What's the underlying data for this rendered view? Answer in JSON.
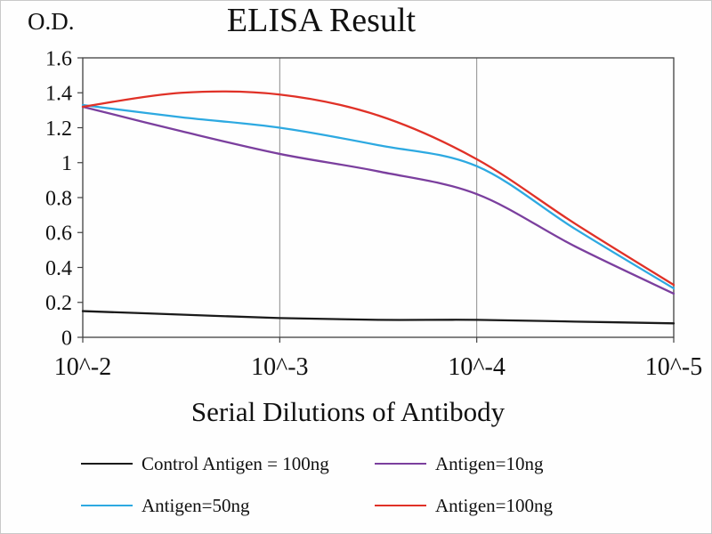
{
  "figure": {
    "title": "ELISA Result",
    "ylabel": "O.D.",
    "xlabel": "Serial Dilutions of Antibody"
  },
  "chart_data": {
    "type": "line",
    "title": "ELISA Result",
    "xlabel": "Serial Dilutions of Antibody",
    "ylabel": "O.D.",
    "x_log10": [
      -2,
      -2.5,
      -3,
      -3.5,
      -4,
      -4.5,
      -5
    ],
    "x_ticks": [
      {
        "label": "10^-2",
        "log10": -2
      },
      {
        "label": "10^-3",
        "log10": -3
      },
      {
        "label": "10^-4",
        "log10": -4
      },
      {
        "label": "10^-5",
        "log10": -5
      }
    ],
    "y_ticks": [
      {
        "label": "0",
        "value": 0
      },
      {
        "label": "0.2",
        "value": 0.2
      },
      {
        "label": "0.4",
        "value": 0.4
      },
      {
        "label": "0.6",
        "value": 0.6
      },
      {
        "label": "0.8",
        "value": 0.8
      },
      {
        "label": "1",
        "value": 1
      },
      {
        "label": "1.2",
        "value": 1.2
      },
      {
        "label": "1.4",
        "value": 1.4
      },
      {
        "label": "1.6",
        "value": 1.6
      }
    ],
    "ylim": [
      0,
      1.6
    ],
    "grid": "vertical-major-only",
    "legend_position": "below",
    "colors": {
      "axis": "#404040",
      "gridline": "#8c8c8c",
      "text": "#111111"
    },
    "series": [
      {
        "name": "Control Antigen = 100ng",
        "color": "#1a1a1a",
        "values": [
          0.15,
          0.13,
          0.11,
          0.1,
          0.1,
          0.09,
          0.08
        ]
      },
      {
        "name": "Antigen=10ng",
        "color": "#7b3f9e",
        "values": [
          1.32,
          1.18,
          1.05,
          0.95,
          0.82,
          0.52,
          0.25
        ]
      },
      {
        "name": "Antigen=50ng",
        "color": "#2da9e1",
        "values": [
          1.33,
          1.26,
          1.2,
          1.1,
          0.98,
          0.62,
          0.28
        ]
      },
      {
        "name": "Antigen=100ng",
        "color": "#e03127",
        "values": [
          1.32,
          1.4,
          1.39,
          1.27,
          1.02,
          0.65,
          0.3
        ]
      }
    ]
  }
}
